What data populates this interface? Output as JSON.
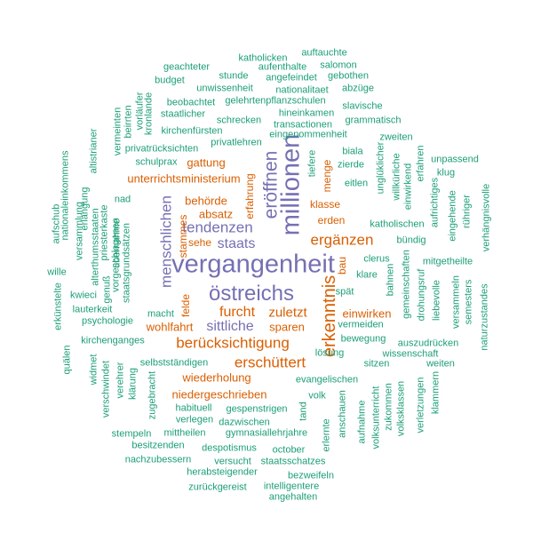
{
  "colors": {
    "large": "#7570b3",
    "medium": "#d95f02",
    "small": "#1b9e77"
  },
  "words": {
    "vergangenheit": "vergangenheit",
    "millionen": "millionen",
    "oestreichs": "östreichs",
    "erkenntnis": "erkenntnis",
    "eroeffnen": "eröffnen",
    "menschlichen": "menschlichen",
    "tendenzen": "tendenzen",
    "staats": "staats",
    "ergaenzen": "ergänzen",
    "beruecksichtigung": "berücksichtigung",
    "erschuettert": "erschüttert",
    "sittliche": "sittliche",
    "furcht": "furcht",
    "zuletzt": "zuletzt",
    "einwirken": "einwirken",
    "wohlfahrt": "wohlfahrt",
    "sparen": "sparen",
    "niedergeschrieben": "niedergeschrieben",
    "wiederholung": "wiederholung",
    "unterrichtsministerium": "unterrichtsministerium",
    "gattung": "gattung",
    "behoerde": "behörde",
    "absatz": "absatz",
    "sehe": "sehe",
    "stammes": "stammes",
    "felde": "felde",
    "erfahrung": "erfahrung",
    "menge": "menge",
    "klasse": "klasse",
    "erden": "erden",
    "bau": "bau",
    "katholicken": "katholicken",
    "auftauchte": "auftauchte",
    "geachteter": "geachteter",
    "aufenthalte": "aufenthalte",
    "salomon": "salomon",
    "stunde": "stunde",
    "gebothen": "gebothen",
    "budget": "budget",
    "angefeindet": "angefeindet",
    "unwissenheit": "unwissenheit",
    "nationalitaet": "nationalitaet",
    "abzuege": "abzüge",
    "beobachtet": "beobachtet",
    "gelehrtenpflanzschulen": "gelehrtenpflanzschulen",
    "slavische": "slavische",
    "staatlicher": "staatlicher",
    "hineinkamen": "hineinkamen",
    "schrecken": "schrecken",
    "grammatisch": "grammatisch",
    "transactionen": "transactionen",
    "kirchenfuersten": "kirchenfürsten",
    "eingenommenheit": "eingenommenheit",
    "privatruecksichten": "privatrücksichten",
    "privatlehren": "privatlehren",
    "zweiten": "zweiten",
    "schulprax": "schulprax",
    "biala": "biala",
    "tiefere": "tiefere",
    "zierde": "zierde",
    "eitlen": "eitlen",
    "unglueklicher": "unglüklicher",
    "willkuerliche": "willkürliche",
    "einwirkend": "einwirkend",
    "erfahren": "erfahren",
    "unpassend": "unpassend",
    "klug": "klug",
    "aufrichtiges": "aufrichtiges",
    "eingehende": "eingehende",
    "ruehriger": "rühriger",
    "verhaengnisvolle": "verhängnisvolle",
    "katholischen": "katholischen",
    "buendig": "bündig",
    "mitgetheilte": "mitgetheilte",
    "clerus": "clerus",
    "klare": "klare",
    "spaet": "spät",
    "bahnen": "bahnen",
    "gemeinschaften": "gemeinschaften",
    "drohungsruf": "drohungsruf",
    "liebevolle": "liebevolle",
    "versammeln": "versammeln",
    "semesters": "semesters",
    "naturzustandes": "naturzustandes",
    "vermeiden": "vermeiden",
    "bewegung": "bewegung",
    "auszudruecken": "auszudrücken",
    "loesung": "lösung",
    "wissenschaft": "wissenschaft",
    "sitzen": "sitzen",
    "weiten": "weiten",
    "evangelischen": "evangelischen",
    "volk": "volk",
    "klammern": "klammern",
    "verletzungen": "verletzungen",
    "volksklassen": "volksklassen",
    "zukommen": "zukommen",
    "volksunterricht": "volksunterricht",
    "aufnahme": "aufnahme",
    "anschauen": "anschauen",
    "erlernte": "erlernte",
    "tand": "tand",
    "gespenstrigen": "gespenstrigen",
    "dazwischen": "dazwischen",
    "gymnasiallehrjahre": "gymnasiallehrjahre",
    "october": "october",
    "staatsschatzes": "staatsschatzes",
    "bezweifeln": "bezweifeln",
    "intelligentere": "intelligentere",
    "angehalten": "angehalten",
    "zurueckgereist": "zurückgereist",
    "herabsteigender": "herabsteigender",
    "versucht": "versucht",
    "despotismus": "despotismus",
    "nachzubessern": "nachzubessern",
    "besitzenden": "besitzenden",
    "stempeln": "stempeln",
    "mittheilen": "mittheilen",
    "verlegen": "verlegen",
    "habituell": "habituell",
    "zugebracht": "zugebracht",
    "klaerung": "klärung",
    "verehrer": "verehrer",
    "verschwindet": "verschwindet",
    "widmet": "widmet",
    "quaelen": "quälen",
    "erkuenstelte": "erkünstelte",
    "wille": "wille",
    "kwieci": "kwieci",
    "lauterkeit": "lauterkeit",
    "psychologie": "psychologie",
    "kirchenganges": "kirchenganges",
    "selbststaendigen": "selbstständigen",
    "macht": "macht",
    "aufschub": "aufschub",
    "nationaleinkommens": "nationaleinkommens",
    "versammlung": "versammlung",
    "erlangung": "erlangung",
    "alterthumsstaaten": "alterthumsstaaten",
    "priesterkaste": "priesterkaste",
    "genuss": "genuß",
    "uebernahme": "übernahme",
    "vorgeschlagenen": "vorgeschlagenen",
    "staatsgrundsaetzen": "staatsgrundsätzen",
    "nad": "nad",
    "altistrianer": "altistrianer",
    "vermeinten": "vermeinten",
    "beirrten": "beirrten",
    "vorlaeufer": "vorläufer",
    "kronlande": "kronlande"
  }
}
